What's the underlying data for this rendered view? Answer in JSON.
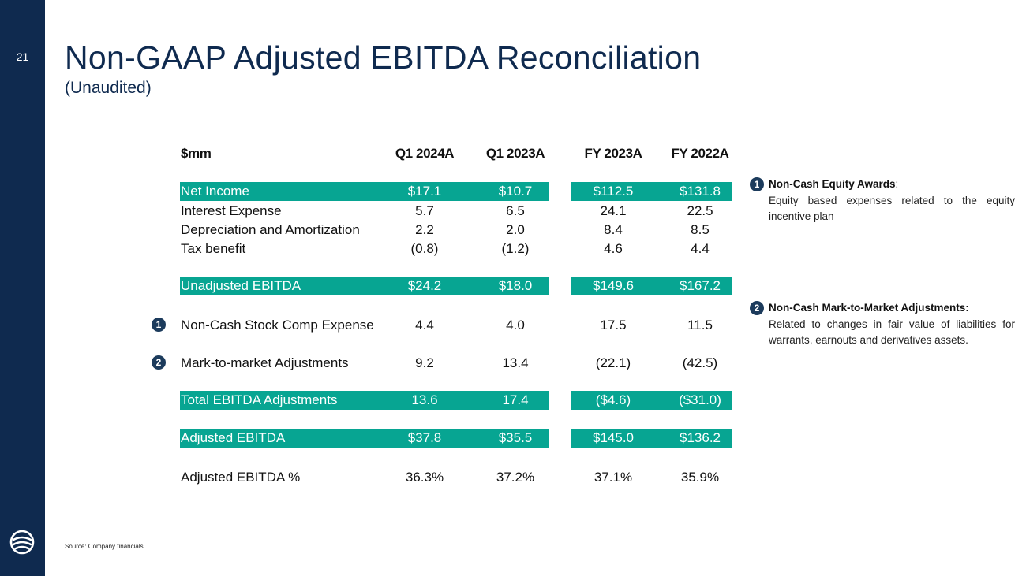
{
  "slide": {
    "page_number": "21",
    "title": "Non-GAAP Adjusted EBITDA Reconciliation",
    "subtitle": "(Unaudited)",
    "source": "Source: Company financials"
  },
  "table": {
    "header": {
      "label": "$mm",
      "c1": "Q1 2024A",
      "c2": "Q1 2023A",
      "c3": "FY 2023A",
      "c4": "FY 2022A"
    },
    "rows": {
      "net_income": {
        "label": "Net Income",
        "c1": "$17.1",
        "c2": "$10.7",
        "c3": "$112.5",
        "c4": "$131.8"
      },
      "interest_expense": {
        "label": "Interest Expense",
        "c1": "5.7",
        "c2": "6.5",
        "c3": "24.1",
        "c4": "22.5"
      },
      "depreciation": {
        "label": "Depreciation and Amortization",
        "c1": "2.2",
        "c2": "2.0",
        "c3": "8.4",
        "c4": "8.5"
      },
      "tax_benefit": {
        "label": "Tax benefit",
        "c1": "(0.8)",
        "c2": "(1.2)",
        "c3": "4.6",
        "c4": "4.4"
      },
      "unadjusted_ebitda": {
        "label": "Unadjusted EBITDA",
        "c1": "$24.2",
        "c2": "$18.0",
        "c3": "$149.6",
        "c4": "$167.2"
      },
      "stock_comp": {
        "marker": "1",
        "label": "Non-Cash Stock Comp Expense",
        "c1": "4.4",
        "c2": "4.0",
        "c3": "17.5",
        "c4": "11.5"
      },
      "mark_to_market": {
        "marker": "2",
        "label": "Mark-to-market Adjustments",
        "c1": "9.2",
        "c2": "13.4",
        "c3": "(22.1)",
        "c4": "(42.5)"
      },
      "total_adjustments": {
        "label": "Total EBITDA Adjustments",
        "c1": "13.6",
        "c2": "17.4",
        "c3": "($4.6)",
        "c4": "($31.0)"
      },
      "adjusted_ebitda": {
        "label": "Adjusted EBITDA",
        "c1": "$37.8",
        "c2": "$35.5",
        "c3": "$145.0",
        "c4": "$136.2"
      },
      "adjusted_ebitda_pct": {
        "label": "Adjusted EBITDA %",
        "c1": "36.3%",
        "c2": "37.2%",
        "c3": "37.1%",
        "c4": "35.9%"
      }
    }
  },
  "notes": [
    {
      "marker": "1",
      "title": "Non-Cash Equity Awards",
      "title_suffix": ":",
      "body": "Equity based expenses related to the equity incentive plan"
    },
    {
      "marker": "2",
      "title": "Non-Cash Mark-to-Market Adjustments:",
      "title_suffix": "",
      "body": "Related to changes in fair value of liabilities for warrants, earnouts and derivatives assets."
    }
  ],
  "colors": {
    "navy": "#0f2a4f",
    "teal": "#07a592",
    "marker": "#1c3b5c"
  },
  "icons": {
    "logo": "company-logo-icon"
  }
}
